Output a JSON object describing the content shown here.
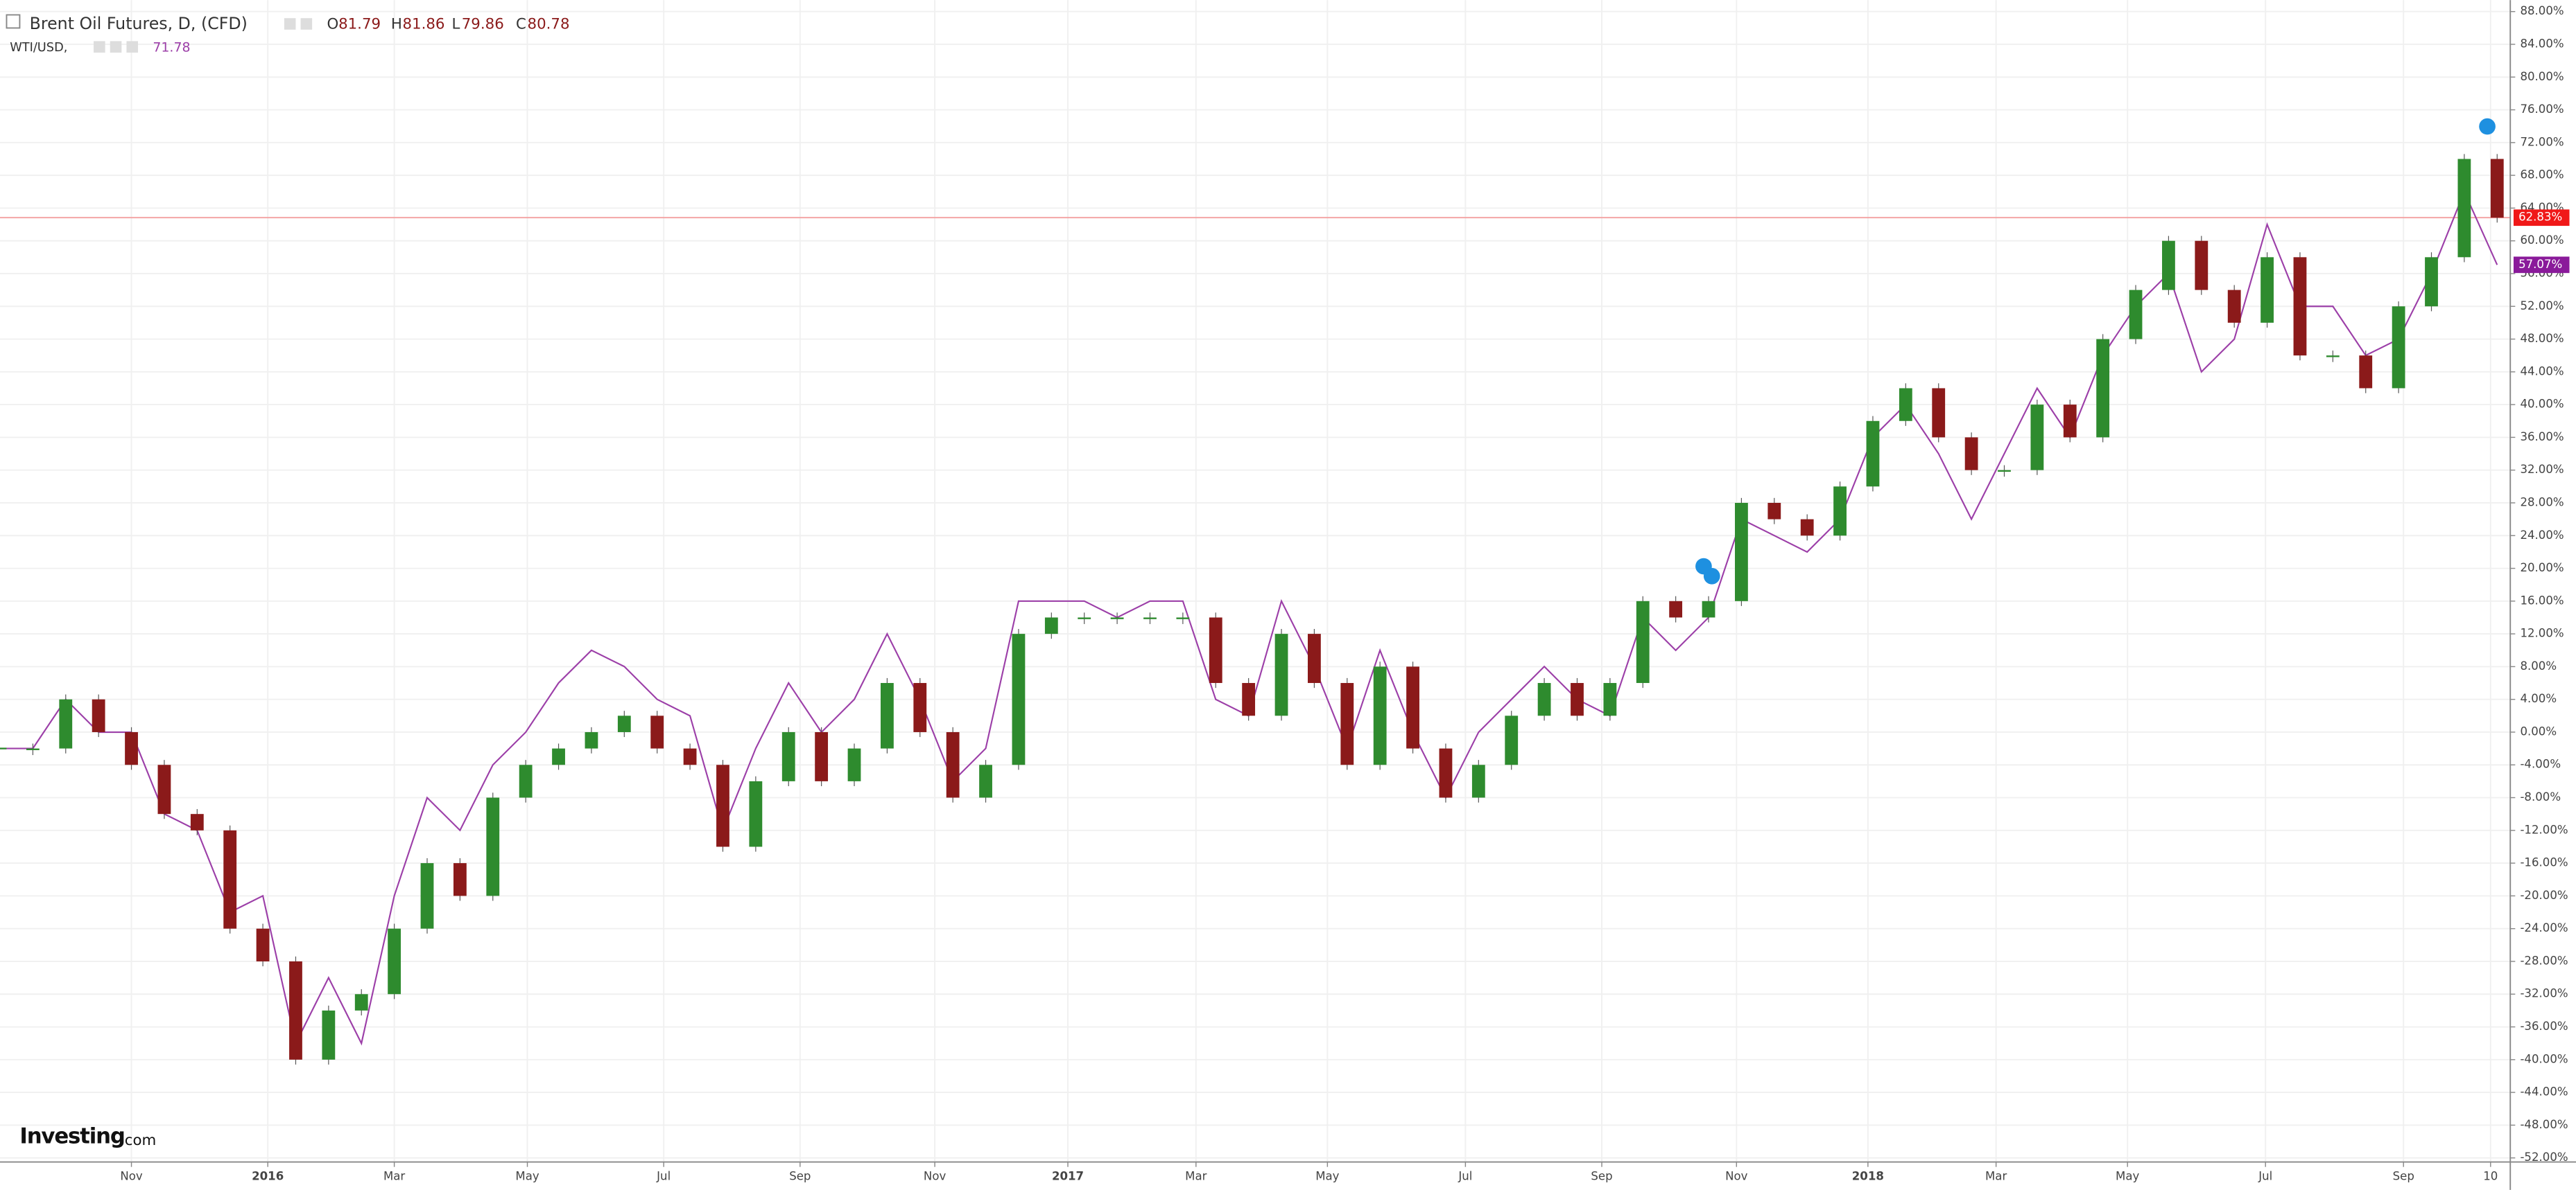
{
  "header": {
    "symbol": "Brent Oil Futures, D, (CFD)",
    "o_label": "O",
    "open": "81.79",
    "h_label": "H",
    "high": "81.86",
    "l_label": "L",
    "low": "79.86",
    "c_label": "C",
    "close": "80.78",
    "compare_symbol": "WTI/USD,",
    "compare_value": "71.78",
    "logo": "Investing",
    "logo_suffix": ".com"
  },
  "chart_data": {
    "type": "candlestick-compare",
    "series": [
      {
        "name": "Brent Oil Futures",
        "up_color": "#2e8b2e",
        "down_color": "#8b1a1a",
        "label_color": "#f01818",
        "last_label": "62.83%",
        "values": [
          -2,
          -2,
          4,
          0,
          -4,
          -10,
          -12,
          -24,
          -28,
          -40,
          -34,
          -32,
          -24,
          -16,
          -20,
          -8,
          -4,
          -2,
          0,
          2,
          -2,
          -4,
          -14,
          -6,
          0,
          -6,
          -2,
          6,
          0,
          -8,
          -4,
          12,
          14,
          14,
          14,
          14,
          14,
          6,
          2,
          12,
          6,
          -4,
          8,
          -2,
          -8,
          -4,
          2,
          6,
          2,
          6,
          16,
          14,
          16,
          28,
          26,
          24,
          30,
          38,
          42,
          36,
          32,
          32,
          40,
          36,
          48,
          54,
          60,
          54,
          50,
          58,
          46,
          46,
          42,
          52,
          58,
          70,
          62.83
        ]
      },
      {
        "name": "WTI/USD",
        "color": "#9c3fa8",
        "label_color": "#8a1a9a",
        "last_label": "57.07%",
        "values": [
          -2,
          -2,
          4,
          0,
          0,
          -10,
          -12,
          -22,
          -20,
          -38,
          -30,
          -38,
          -20,
          -8,
          -12,
          -4,
          0,
          6,
          10,
          8,
          4,
          2,
          -12,
          -2,
          6,
          0,
          4,
          12,
          4,
          -6,
          -2,
          16,
          16,
          16,
          14,
          16,
          16,
          4,
          2,
          16,
          8,
          -2,
          10,
          0,
          -8,
          0,
          4,
          8,
          4,
          2,
          14,
          10,
          14,
          26,
          24,
          22,
          26,
          36,
          40,
          34,
          26,
          34,
          42,
          36,
          46,
          52,
          56,
          44,
          48,
          62,
          52,
          52,
          46,
          48,
          56,
          66,
          57.07
        ]
      }
    ],
    "xlim": [
      0,
      76.4
    ],
    "xticks": [
      {
        "value": 4,
        "label": "Nov"
      },
      {
        "value": 8.15,
        "label": "2016"
      },
      {
        "value": 12,
        "label": "Mar"
      },
      {
        "value": 16.05,
        "label": "May"
      },
      {
        "value": 20.2,
        "label": "Jul"
      },
      {
        "value": 24.35,
        "label": "Sep"
      },
      {
        "value": 28.45,
        "label": "Nov"
      },
      {
        "value": 32.5,
        "label": "2017"
      },
      {
        "value": 36.4,
        "label": "Mar"
      },
      {
        "value": 40.4,
        "label": "May"
      },
      {
        "value": 44.6,
        "label": "Jul"
      },
      {
        "value": 48.75,
        "label": "Sep"
      },
      {
        "value": 52.85,
        "label": "Nov"
      },
      {
        "value": 56.85,
        "label": "2018"
      },
      {
        "value": 60.75,
        "label": "Mar"
      },
      {
        "value": 64.75,
        "label": "May"
      },
      {
        "value": 68.95,
        "label": "Jul"
      },
      {
        "value": 73.15,
        "label": "Sep"
      },
      {
        "value": 75.8,
        "label": "10"
      }
    ],
    "ylim": [
      -52.5,
      89.4
    ],
    "yticks": [
      {
        "value": 88,
        "label": "88.00%"
      },
      {
        "value": 84,
        "label": "84.00%"
      },
      {
        "value": 80,
        "label": "80.00%"
      },
      {
        "value": 76,
        "label": "76.00%"
      },
      {
        "value": 72,
        "label": "72.00%"
      },
      {
        "value": 68,
        "label": "68.00%"
      },
      {
        "value": 64,
        "label": "64.00%"
      },
      {
        "value": 60,
        "label": "60.00%"
      },
      {
        "value": 56,
        "label": "56.00%"
      },
      {
        "value": 52,
        "label": "52.00%"
      },
      {
        "value": 48,
        "label": "48.00%"
      },
      {
        "value": 44,
        "label": "44.00%"
      },
      {
        "value": 40,
        "label": "40.00%"
      },
      {
        "value": 36,
        "label": "36.00%"
      },
      {
        "value": 32,
        "label": "32.00%"
      },
      {
        "value": 28,
        "label": "28.00%"
      },
      {
        "value": 24,
        "label": "24.00%"
      },
      {
        "value": 20,
        "label": "20.00%"
      },
      {
        "value": 16,
        "label": "16.00%"
      },
      {
        "value": 12,
        "label": "12.00%"
      },
      {
        "value": 8,
        "label": "8.00%"
      },
      {
        "value": 4,
        "label": "4.00%"
      },
      {
        "value": 0,
        "label": "0.00%"
      },
      {
        "value": -4,
        "label": "-4.00%"
      },
      {
        "value": -8,
        "label": "-8.00%"
      },
      {
        "value": -12,
        "label": "-12.00%"
      },
      {
        "value": -16,
        "label": "-16.00%"
      },
      {
        "value": -20,
        "label": "-20.00%"
      },
      {
        "value": -24,
        "label": "-24.00%"
      },
      {
        "value": -28,
        "label": "-28.00%"
      },
      {
        "value": -32,
        "label": "-32.00%"
      },
      {
        "value": -36,
        "label": "-36.00%"
      },
      {
        "value": -40,
        "label": "-40.00%"
      },
      {
        "value": -44,
        "label": "-44.00%"
      },
      {
        "value": -48,
        "label": "-48.00%"
      },
      {
        "value": -52,
        "label": "-52.00%"
      }
    ],
    "grid": true
  }
}
